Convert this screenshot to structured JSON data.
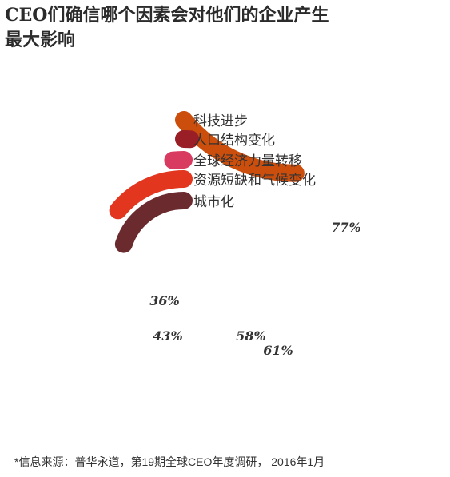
{
  "title_lines": [
    "CEO们确信哪个因素会对他们的企业产生",
    "最大影响"
  ],
  "source": "*信息来源：普华永道，第19期全球CEO年度调研， 2016年1月",
  "chart_data": {
    "type": "radial-bar",
    "unit": "%",
    "series": [
      {
        "name": "科技进步",
        "value": 77,
        "label": "77%",
        "color": "#cc4e0c"
      },
      {
        "name": "人口结构变化",
        "value": 61,
        "label": "61%",
        "color": "#9a1e25"
      },
      {
        "name": "全球经济力量转移",
        "value": 58,
        "label": "58%",
        "color": "#d93a60"
      },
      {
        "name": "资源短缺和气候变化",
        "value": 43,
        "label": "43%",
        "color": "#e2361f"
      },
      {
        "name": "城市化",
        "value": 36,
        "label": "36%",
        "color": "#6b2a2e"
      }
    ]
  }
}
